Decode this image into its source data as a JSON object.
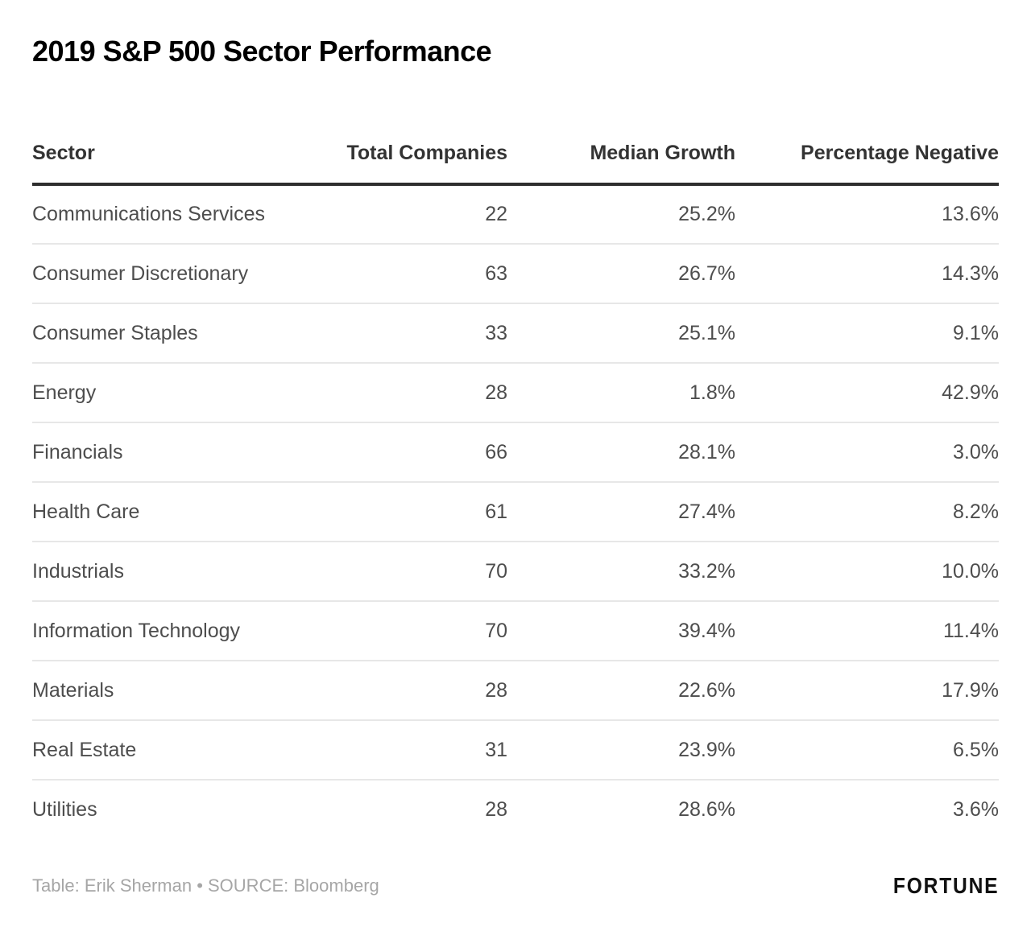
{
  "title": "2019 S&P 500 Sector Performance",
  "chart_data": {
    "type": "table",
    "title": "2019 S&P 500 Sector Performance",
    "columns": [
      "Sector",
      "Total Companies",
      "Median Growth",
      "Percentage Negative"
    ],
    "rows": [
      [
        "Communications Services",
        "22",
        "25.2%",
        "13.6%"
      ],
      [
        "Consumer Discretionary",
        "63",
        "26.7%",
        "14.3%"
      ],
      [
        "Consumer Staples",
        "33",
        "25.1%",
        "9.1%"
      ],
      [
        "Energy",
        "28",
        "1.8%",
        "42.9%"
      ],
      [
        "Financials",
        "66",
        "28.1%",
        "3.0%"
      ],
      [
        "Health Care",
        "61",
        "27.4%",
        "8.2%"
      ],
      [
        "Industrials",
        "70",
        "33.2%",
        "10.0%"
      ],
      [
        "Information Technology",
        "70",
        "39.4%",
        "11.4%"
      ],
      [
        "Materials",
        "28",
        "22.6%",
        "17.9%"
      ],
      [
        "Real Estate",
        "31",
        "23.9%",
        "6.5%"
      ],
      [
        "Utilities",
        "28",
        "28.6%",
        "3.6%"
      ]
    ]
  },
  "footer": {
    "credit": "Table: Erik Sherman • SOURCE: Bloomberg",
    "brand": "FORTUNE"
  },
  "colors": {
    "title": "#000000",
    "header_text": "#333333",
    "header_rule": "#2e2e2e",
    "body_text": "#4d4d4d",
    "row_divider": "#e7e7e7",
    "credit_text": "#a6a6a6",
    "brand_text": "#111111",
    "background": "#ffffff"
  }
}
